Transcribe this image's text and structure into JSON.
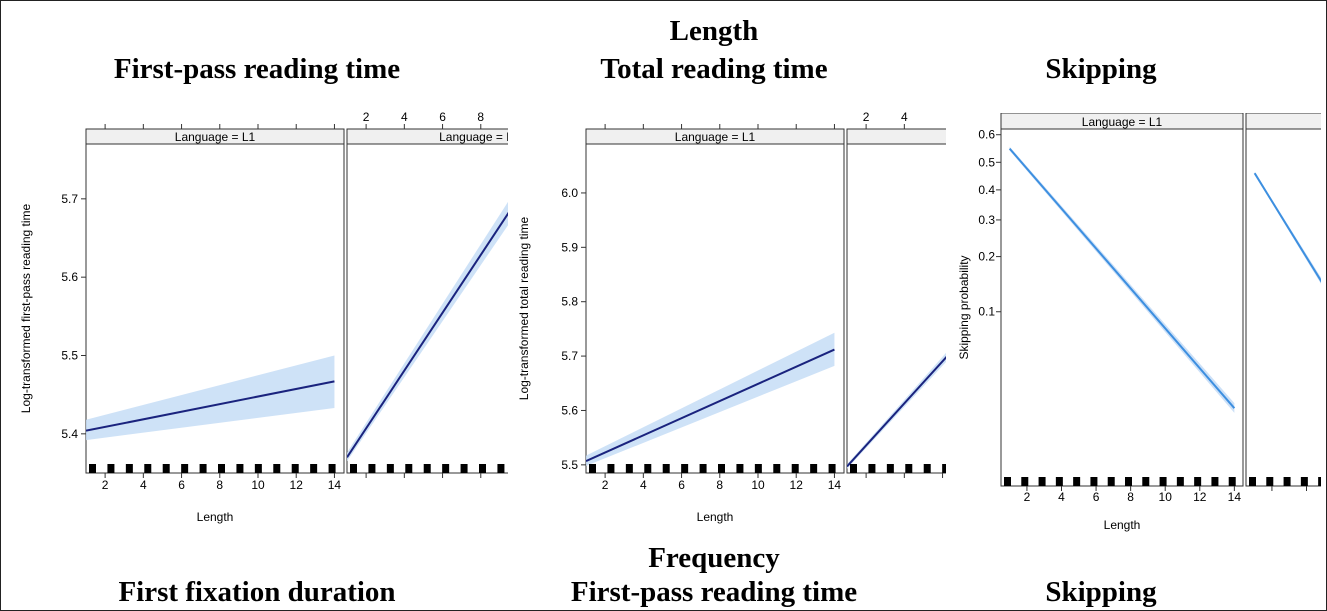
{
  "headings": {
    "length_title": "Length",
    "frequency_title": "Frequency",
    "top_row": [
      "First-pass reading time",
      "Total reading time",
      "Skipping"
    ],
    "bottom_row": [
      "First fixation duration",
      "First-pass reading time",
      "Skipping"
    ]
  },
  "colors": {
    "line": "#1a237e",
    "band": "#c6ddf6",
    "skip_line": "#3d8fe0",
    "strip": "#f0f0f0"
  },
  "chart_data": [
    {
      "type": "line",
      "title": "First-pass reading time",
      "xlabel": "Length",
      "ylabel": "Log-transformed first-pass reading time",
      "strip_labels": [
        "Language = L1",
        "Language = L"
      ],
      "xlim": [
        1,
        14.5
      ],
      "xticks": [
        2,
        4,
        6,
        8,
        10,
        12,
        14
      ],
      "top_xticks": [
        2,
        4,
        6,
        8
      ],
      "ylim": [
        5.35,
        5.77
      ],
      "yticks": [
        5.4,
        5.5,
        5.6,
        5.7
      ],
      "scale": "linear",
      "panels": [
        {
          "name": "Language = L1",
          "x": [
            1,
            14
          ],
          "fit": [
            5.404,
            5.467
          ],
          "lower": [
            5.392,
            5.433
          ],
          "upper": [
            5.418,
            5.5
          ]
        },
        {
          "name": "Language = L",
          "x": [
            1,
            14
          ],
          "fit": [
            5.37,
            5.85
          ],
          "lower": [
            5.365,
            5.83
          ],
          "upper": [
            5.376,
            5.87
          ]
        }
      ]
    },
    {
      "type": "line",
      "title": "Total reading time",
      "xlabel": "Length",
      "ylabel": "Log-transformed total reading time",
      "strip_labels": [
        "Language = L1",
        "La"
      ],
      "xlim": [
        1,
        14.5
      ],
      "xticks": [
        2,
        4,
        6,
        8,
        10,
        12,
        14
      ],
      "top_xticks": [
        2,
        4
      ],
      "ylim": [
        5.485,
        6.09
      ],
      "yticks": [
        5.5,
        5.6,
        5.7,
        5.8,
        5.9,
        6.0
      ],
      "scale": "linear",
      "panels": [
        {
          "name": "Language = L1",
          "x": [
            1,
            14
          ],
          "fit": [
            5.507,
            5.712
          ],
          "lower": [
            5.498,
            5.682
          ],
          "upper": [
            5.517,
            5.743
          ]
        },
        {
          "name": "La",
          "x": [
            1,
            14
          ],
          "fit": [
            5.497,
            6.0
          ],
          "lower": [
            5.493,
            5.985
          ],
          "upper": [
            5.501,
            6.015
          ]
        }
      ]
    },
    {
      "type": "line",
      "title": "Skipping",
      "xlabel": "Length",
      "ylabel": "Skipping probability",
      "strip_labels": [
        "Language = L1",
        "L"
      ],
      "xlim": [
        0.5,
        14.5
      ],
      "xticks": [
        2,
        4,
        6,
        8,
        10,
        12,
        14
      ],
      "top_xticks": [
        2,
        4
      ],
      "scale": "logit",
      "ylim": [
        0.0085,
        0.62
      ],
      "yticks": [
        0.1,
        0.2,
        0.3,
        0.4,
        0.5,
        0.6
      ],
      "panels": [
        {
          "name": "Language = L1",
          "x": [
            1,
            14
          ],
          "fit": [
            0.55,
            0.0262
          ],
          "lower": [
            0.543,
            0.0245
          ],
          "upper": [
            0.557,
            0.0282
          ]
        },
        {
          "name": "L",
          "x": [
            1,
            14
          ],
          "fit": [
            0.46,
            0.004
          ],
          "lower": [
            0.455,
            0.0036
          ],
          "upper": [
            0.465,
            0.0045
          ]
        }
      ]
    }
  ]
}
